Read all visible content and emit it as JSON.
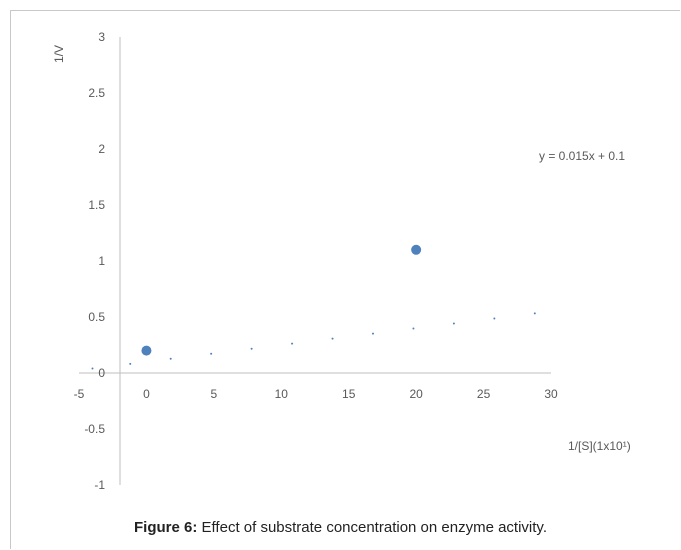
{
  "chart_data": {
    "type": "scatter",
    "xlim": [
      -5,
      30
    ],
    "ylim": [
      -1,
      3
    ],
    "x_ticks": [
      -5,
      0,
      5,
      10,
      15,
      20,
      25,
      30
    ],
    "y_ticks": [
      -1,
      -0.5,
      0,
      0.5,
      1,
      1.5,
      2,
      2.5,
      3
    ],
    "xlabel": "1/[S](1x10¹)",
    "ylabel": "1/V",
    "grid": false,
    "series": [
      {
        "kind": "marker",
        "color": "#4f81bd",
        "x": [
          0,
          20
        ],
        "y": [
          0.2,
          1.1
        ]
      },
      {
        "kind": "trendline-dotted",
        "color": "#4f81bd",
        "x": [
          -4,
          -1.2,
          1.8,
          4.8,
          7.8,
          10.8,
          13.8,
          16.8,
          19.8,
          22.8,
          25.8,
          28.8
        ],
        "y": [
          0.04,
          0.082,
          0.127,
          0.172,
          0.217,
          0.262,
          0.307,
          0.352,
          0.397,
          0.442,
          0.487,
          0.532
        ]
      }
    ],
    "annotations": [
      {
        "text": "y = 0.015x + 0.1"
      }
    ]
  },
  "caption": {
    "label": "Figure 6:",
    "text": " Effect of substrate concentration on enzyme activity."
  }
}
